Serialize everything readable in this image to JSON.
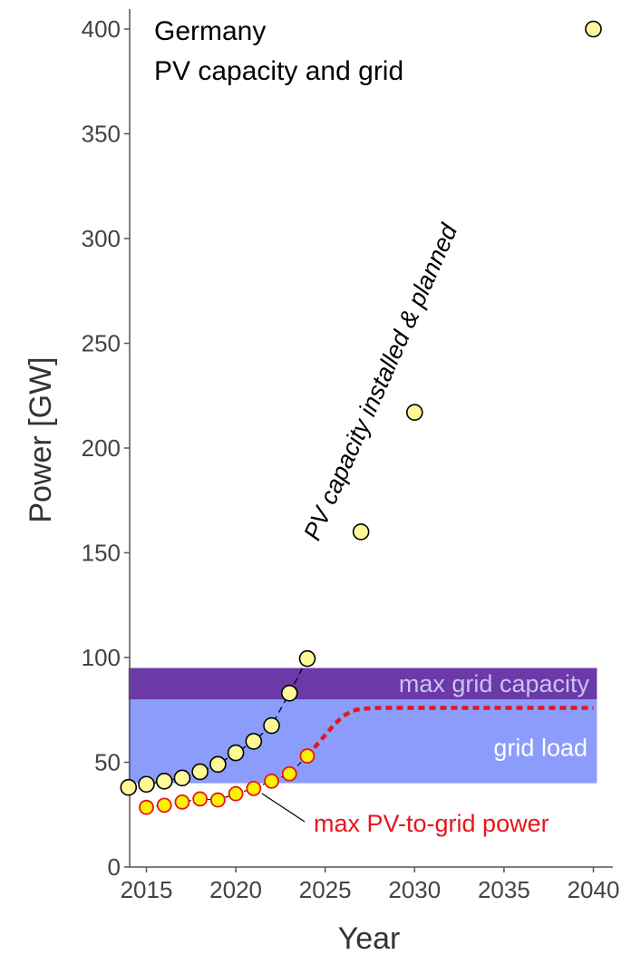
{
  "chart_data": {
    "type": "scatter",
    "title_lines": [
      "Germany",
      "PV capacity and grid"
    ],
    "xlabel": "Year",
    "ylabel": "Power [GW]",
    "xlim": [
      2014,
      2041
    ],
    "ylim": [
      0,
      410
    ],
    "x_ticks": [
      2015,
      2020,
      2025,
      2030,
      2035,
      2040
    ],
    "y_ticks": [
      0,
      50,
      100,
      150,
      200,
      250,
      300,
      350,
      400
    ],
    "grid": false,
    "colors": {
      "pv_fill": "#fff899",
      "pv_stroke": "#000000",
      "pv_grid_fill": "#fff200",
      "pv_grid_stroke": "#e8141c",
      "grid_load_band": "#8b9cfb",
      "grid_capacity_band": "#6b39a8",
      "grid_capacity_text": "#c9c3f2",
      "grid_load_text": "#ffffff",
      "max_pv_text": "#e8141c",
      "axis": "#555555"
    },
    "bands": [
      {
        "name": "grid load",
        "y0": 40,
        "y1": 80,
        "x0": 2014,
        "x1": 2040.2
      },
      {
        "name": "max grid capacity",
        "y0": 80,
        "y1": 95,
        "x0": 2014,
        "x1": 2040.2
      }
    ],
    "annotations": {
      "pv_label": "PV capacity installed & planned",
      "max_pv_label": "max PV-to-grid power"
    },
    "series": [
      {
        "name": "PV capacity installed & planned",
        "x": [
          2014,
          2015,
          2016,
          2017,
          2018,
          2019,
          2020,
          2021,
          2022,
          2023,
          2024,
          2027,
          2030,
          2040
        ],
        "y": [
          38,
          39.5,
          41,
          42.5,
          45.5,
          49,
          54.5,
          60,
          67.5,
          83,
          99.5,
          160,
          217,
          400
        ]
      },
      {
        "name": "max PV-to-grid power",
        "x": [
          2015,
          2016,
          2017,
          2018,
          2019,
          2020,
          2021,
          2022,
          2023,
          2024
        ],
        "y": [
          28.5,
          29.5,
          31,
          32.5,
          32,
          35,
          37.5,
          41,
          44.5,
          53
        ]
      }
    ],
    "projection_curve": {
      "x": [
        2024,
        2024.5,
        2025,
        2025.5,
        2026,
        2026.5,
        2027,
        2028,
        2030,
        2035,
        2040
      ],
      "y": [
        53,
        58,
        63,
        68,
        72,
        74.5,
        75.5,
        76,
        76,
        76,
        76
      ]
    }
  }
}
